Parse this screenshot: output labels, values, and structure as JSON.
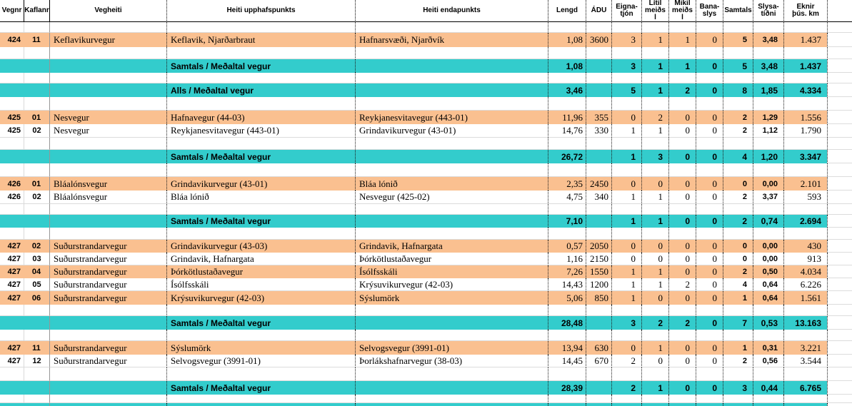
{
  "colors": {
    "row_highlight_orange": "#fac090",
    "total_row_teal": "#33cccc"
  },
  "table": {
    "columns": [
      {
        "key": "vegnr",
        "label": "Vegnr"
      },
      {
        "key": "kaflanr",
        "label": "Kaflanr"
      },
      {
        "key": "vegheiti",
        "label": "Vegheiti"
      },
      {
        "key": "upphaf",
        "label": "Heiti upphafspunkts"
      },
      {
        "key": "endap",
        "label": "Heiti endapunkts"
      },
      {
        "key": "lengd",
        "label": "Lengd"
      },
      {
        "key": "adu",
        "label": "ÁDU"
      },
      {
        "key": "eigna",
        "label": "Eigna-\ntjón"
      },
      {
        "key": "litil",
        "label": "Lítil\nmeiðs\nl"
      },
      {
        "key": "mikil",
        "label": "Mikil\nmeiðs\nl"
      },
      {
        "key": "bana",
        "label": "Bana-\nslys"
      },
      {
        "key": "samtals",
        "label": "Samtals"
      },
      {
        "key": "slysa",
        "label": "Slysa-\ntíðni"
      },
      {
        "key": "eknir",
        "label": "Eknir\nþús. km"
      }
    ],
    "rows": [
      {
        "type": "spacer",
        "h": 15
      },
      {
        "type": "data",
        "fill": "orange",
        "h": 20,
        "cells": [
          "424",
          "11",
          "Keflavikurvegur",
          "Keflavik, Njarðarbraut",
          "Hafnarsvæði, Njarðvík",
          "1,08",
          "3600",
          "3",
          "1",
          "1",
          "0",
          "5",
          "3,48",
          "1.437"
        ]
      },
      {
        "type": "spacer",
        "h": 17
      },
      {
        "type": "total",
        "h": 19,
        "cells": [
          "",
          "",
          "",
          "Samtals / Meðaltal vegur",
          "",
          "1,08",
          "",
          "3",
          "1",
          "1",
          "0",
          "5",
          "3,48",
          "1.437"
        ]
      },
      {
        "type": "spacer",
        "h": 15
      },
      {
        "type": "total",
        "h": 19,
        "cells": [
          "",
          "",
          "",
          "Alls / Meðaltal vegur",
          "",
          "3,46",
          "",
          "5",
          "1",
          "2",
          "0",
          "8",
          "1,85",
          "4.334"
        ]
      },
      {
        "type": "spacer",
        "h": 19
      },
      {
        "type": "data",
        "fill": "orange",
        "h": 19,
        "cells": [
          "425",
          "01",
          "Nesvegur",
          "Hafnavegur (44-03)",
          "Reykjanesvitavegur (443-01)",
          "11,96",
          "355",
          "0",
          "2",
          "0",
          "0",
          "2",
          "1,29",
          "1.556"
        ]
      },
      {
        "type": "data",
        "fill": "white",
        "h": 19,
        "cells": [
          "425",
          "02",
          "Nesvegur",
          "Reykjanesvitavegur (443-01)",
          "Grindavikurvegur (43-01)",
          "14,76",
          "330",
          "1",
          "1",
          "0",
          "0",
          "2",
          "1,12",
          "1.790"
        ]
      },
      {
        "type": "spacer",
        "h": 17
      },
      {
        "type": "total",
        "h": 19,
        "cells": [
          "",
          "",
          "",
          "Samtals / Meðaltal vegur",
          "",
          "26,72",
          "",
          "1",
          "3",
          "0",
          "0",
          "4",
          "1,20",
          "3.347"
        ]
      },
      {
        "type": "spacer",
        "h": 19
      },
      {
        "type": "data",
        "fill": "orange",
        "h": 19,
        "cells": [
          "426",
          "01",
          "Bláalónsvegur",
          "Grindavikurvegur (43-01)",
          "Bláa lónið",
          "2,35",
          "2450",
          "0",
          "0",
          "0",
          "0",
          "0",
          "0,00",
          "2.101"
        ]
      },
      {
        "type": "data",
        "fill": "white",
        "h": 19,
        "cells": [
          "426",
          "02",
          "Bláalónsvegur",
          "Bláa lónið",
          "Nesvegur (425-02)",
          "4,75",
          "340",
          "1",
          "1",
          "0",
          "0",
          "2",
          "3,37",
          "593"
        ]
      },
      {
        "type": "spacer",
        "h": 15
      },
      {
        "type": "total",
        "h": 18,
        "cells": [
          "",
          "",
          "",
          "Samtals / Meðaltal vegur",
          "",
          "7,10",
          "",
          "1",
          "1",
          "0",
          "0",
          "2",
          "0,74",
          "2.694"
        ]
      },
      {
        "type": "spacer",
        "h": 17
      },
      {
        "type": "data",
        "fill": "orange",
        "h": 18,
        "cells": [
          "427",
          "02",
          "Suðurstrandarvegur",
          "Grindavikurvegur (43-03)",
          "Grindavik, Hafnargata",
          "0,57",
          "2050",
          "0",
          "0",
          "0",
          "0",
          "0",
          "0,00",
          "430"
        ]
      },
      {
        "type": "data",
        "fill": "white",
        "h": 18,
        "cells": [
          "427",
          "03",
          "Suðurstrandarvegur",
          "Grindavik, Hafnargata",
          "Þórkötlustaðavegur",
          "1,16",
          "2150",
          "0",
          "0",
          "0",
          "0",
          "0",
          "0,00",
          "913"
        ]
      },
      {
        "type": "data",
        "fill": "orange",
        "h": 18,
        "cells": [
          "427",
          "04",
          "Suðurstrandarvegur",
          "Þórkötlustaðavegur",
          "Ísólfsskáli",
          "7,26",
          "1550",
          "1",
          "1",
          "0",
          "0",
          "2",
          "0,50",
          "4.034"
        ]
      },
      {
        "type": "data",
        "fill": "white",
        "h": 18,
        "cells": [
          "427",
          "05",
          "Suðurstrandarvegur",
          "Ísólfsskáli",
          "Krýsuvikurvegur (42-03)",
          "14,43",
          "1200",
          "1",
          "1",
          "2",
          "0",
          "4",
          "0,64",
          "6.226"
        ]
      },
      {
        "type": "data",
        "fill": "orange",
        "h": 19,
        "cells": [
          "427",
          "06",
          "Suðurstrandarvegur",
          "Krýsuvikurvegur (42-03)",
          "Sýslumörk",
          "5,06",
          "850",
          "1",
          "0",
          "0",
          "0",
          "1",
          "0,64",
          "1.561"
        ]
      },
      {
        "type": "spacer",
        "h": 16
      },
      {
        "type": "total",
        "h": 19,
        "cells": [
          "",
          "",
          "",
          "Samtals / Meðaltal vegur",
          "",
          "28,48",
          "",
          "3",
          "2",
          "2",
          "0",
          "7",
          "0,53",
          "13.163"
        ]
      },
      {
        "type": "spacer",
        "h": 16
      },
      {
        "type": "data",
        "fill": "orange",
        "h": 19,
        "cells": [
          "427",
          "11",
          "Suðurstrandarvegur",
          "Sýslumörk",
          "Selvogsvegur (3991-01)",
          "13,94",
          "630",
          "0",
          "1",
          "0",
          "0",
          "1",
          "0,31",
          "3.221"
        ]
      },
      {
        "type": "data",
        "fill": "white",
        "h": 18,
        "cells": [
          "427",
          "12",
          "Suðurstrandarvegur",
          "Selvogsvegur (3991-01)",
          "Þorlákshafnarvegur (38-03)",
          "14,45",
          "670",
          "2",
          "0",
          "0",
          "0",
          "2",
          "0,56",
          "3.544"
        ]
      },
      {
        "type": "spacer",
        "h": 19
      },
      {
        "type": "total",
        "h": 19,
        "cells": [
          "",
          "",
          "",
          "Samtals / Meðaltal vegur",
          "",
          "28,39",
          "",
          "2",
          "1",
          "0",
          "0",
          "3",
          "0,44",
          "6.765"
        ]
      },
      {
        "type": "spacer",
        "h": 12
      },
      {
        "type": "partial",
        "h": 4,
        "cells": [
          "",
          "",
          "",
          "",
          "",
          "",
          "",
          "",
          "",
          "",
          "",
          "",
          "",
          ""
        ]
      }
    ]
  }
}
